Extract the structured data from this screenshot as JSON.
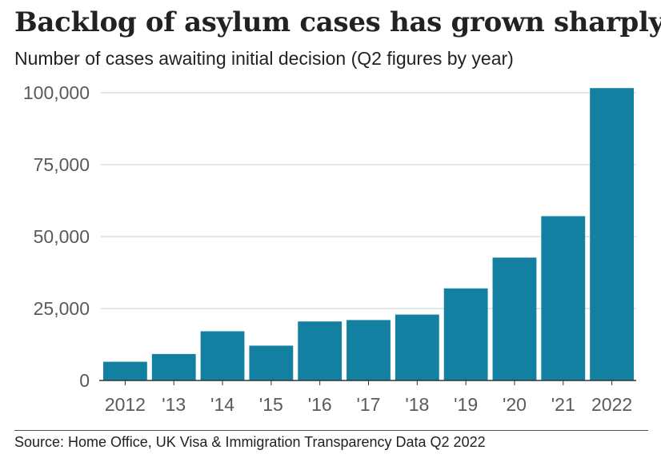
{
  "title": "Backlog of asylum cases has grown sharply",
  "subtitle": "Number of cases awaiting initial decision (Q2 figures by year)",
  "source": "Source: Home Office, UK Visa & Immigration Transparency Data Q2 2022",
  "colors": {
    "bar": "#1380A1",
    "grid": "#cccccc",
    "axis": "#333333",
    "text": "#222222",
    "tick": "#5a5a5a"
  },
  "chart_data": {
    "type": "bar",
    "title": "Backlog of asylum cases has grown sharply",
    "subtitle": "Number of cases awaiting initial decision (Q2 figures by year)",
    "categories": [
      "2012",
      "'13",
      "'14",
      "'15",
      "'16",
      "'17",
      "'18",
      "'19",
      "'20",
      "'21",
      "2022"
    ],
    "values": [
      6500,
      9200,
      17100,
      12100,
      20500,
      21000,
      22900,
      32000,
      42700,
      57100,
      101600
    ],
    "ylim": [
      0,
      100000
    ],
    "yticks": [
      0,
      25000,
      50000,
      75000,
      100000
    ],
    "ytick_labels": [
      "0",
      "25,000",
      "50,000",
      "75,000",
      "100,000"
    ],
    "xlabel": "",
    "ylabel": "",
    "grid": true,
    "legend": "none"
  }
}
